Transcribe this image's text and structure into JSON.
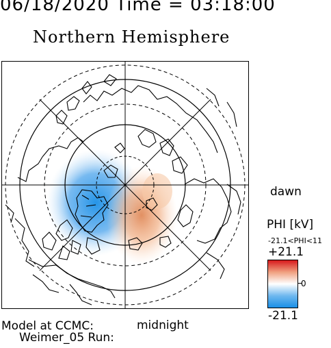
{
  "header": {
    "datetime": "06/18/2020 Time = 03:18:00",
    "title": "Northern Hemisphere"
  },
  "map": {
    "orientation_labels": {
      "dawn": "dawn",
      "midnight": "midnight"
    },
    "colors": {
      "positive": "#d7191c",
      "negative": "#1a8fe6",
      "neutral": "#ffffff"
    }
  },
  "colorbar": {
    "label": "PHI [kV]",
    "range_text": "-21.1<PHI<11",
    "max_label": "+21.1",
    "zero_label": "0",
    "min_label": "-21.1"
  },
  "footer": {
    "line1": "Model at CCMC:",
    "line2": "Weimer_05 Run:"
  }
}
